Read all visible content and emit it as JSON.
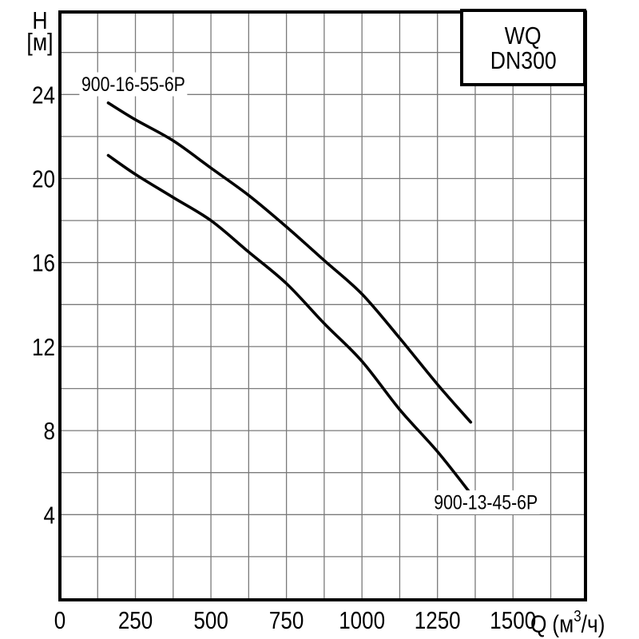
{
  "chart_data": {
    "type": "line",
    "title_box": {
      "line1": "WQ",
      "line2": "DN300"
    },
    "y_axis": {
      "title_line1": "H",
      "title_line2": "[м]",
      "tick_labels": [
        24,
        20,
        16,
        12,
        8,
        4
      ],
      "grid_step": 2,
      "range": [
        0,
        27.9
      ]
    },
    "x_axis": {
      "unit_main": "Q",
      "unit_open": "(м",
      "unit_sup": "3",
      "unit_close": "/ч)",
      "tick_labels": [
        0,
        250,
        500,
        750,
        1000,
        1250,
        1500
      ],
      "grid_step": 125,
      "range": [
        0,
        1740
      ]
    },
    "grid": true,
    "legend_position": "top-right",
    "series": [
      {
        "name": "900-16-55-6P",
        "label_anchor": {
          "q": 243,
          "h": 24.5
        },
        "points": [
          [
            160,
            23.6
          ],
          [
            250,
            22.8
          ],
          [
            375,
            21.8
          ],
          [
            500,
            20.5
          ],
          [
            625,
            19.2
          ],
          [
            750,
            17.7
          ],
          [
            875,
            16.1
          ],
          [
            1000,
            14.5
          ],
          [
            1125,
            12.4
          ],
          [
            1250,
            10.2
          ],
          [
            1360,
            8.4
          ]
        ]
      },
      {
        "name": "900-13-45-6P",
        "label_anchor": {
          "q": 1410,
          "h": 4.6
        },
        "points": [
          [
            160,
            21.1
          ],
          [
            250,
            20.2
          ],
          [
            375,
            19.1
          ],
          [
            500,
            18.0
          ],
          [
            625,
            16.5
          ],
          [
            750,
            15.0
          ],
          [
            875,
            13.1
          ],
          [
            1000,
            11.3
          ],
          [
            1125,
            9.0
          ],
          [
            1250,
            7.0
          ],
          [
            1360,
            5.0
          ]
        ]
      }
    ]
  },
  "colors": {
    "background": "#ffffff",
    "curve": "#000000",
    "grid": "#7a7a7a",
    "axis_border": "#000000",
    "text": "#000000"
  }
}
